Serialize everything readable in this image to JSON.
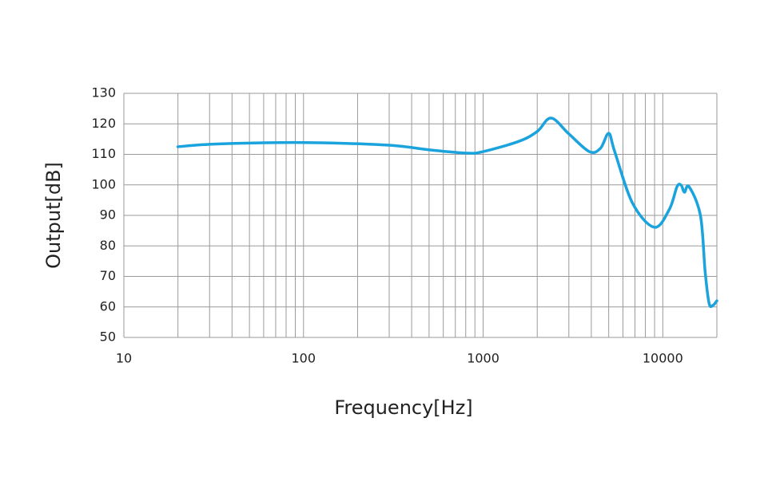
{
  "chart_data": {
    "type": "line",
    "x_label": "Frequency[Hz]",
    "y_label": "Output[dB]",
    "xlog": true,
    "grid": true,
    "xlim": [
      10,
      20000
    ],
    "ylim": [
      50,
      130
    ],
    "xticks": [
      10,
      100,
      1000,
      10000
    ],
    "x_minor_ticks": [
      20,
      30,
      40,
      50,
      60,
      70,
      80,
      90,
      200,
      300,
      400,
      500,
      600,
      700,
      800,
      900,
      2000,
      3000,
      4000,
      5000,
      6000,
      7000,
      8000,
      9000,
      20000
    ],
    "yticks": [
      50,
      60,
      70,
      80,
      90,
      100,
      110,
      120,
      130
    ],
    "series": [
      {
        "color": "#1aa3dc",
        "x": [
          20,
          30,
          60,
          125,
          300,
          515,
          815,
          1000,
          1585,
          2000,
          2390,
          3000,
          3900,
          4500,
          5000,
          5400,
          6800,
          9000,
          10900,
          12000,
          12650,
          13200,
          14000,
          16200,
          17200,
          18100,
          19000,
          20000
        ],
        "values": [
          112.5,
          113.3,
          113.8,
          113.8,
          113.0,
          111.4,
          110.4,
          110.9,
          114.3,
          117.5,
          121.9,
          116.7,
          110.9,
          112.0,
          116.9,
          110.9,
          93.9,
          86.1,
          92.1,
          99.4,
          99.9,
          97.6,
          99.4,
          90.0,
          71.7,
          61.2,
          60.5,
          62.0
        ]
      }
    ]
  }
}
